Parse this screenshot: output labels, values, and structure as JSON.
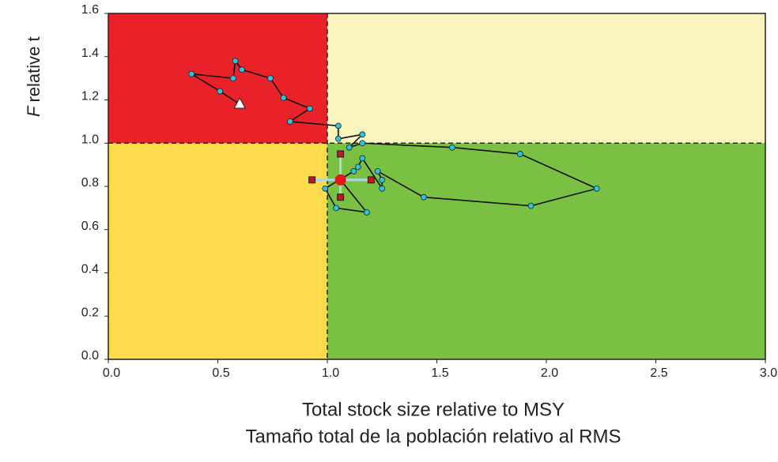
{
  "chart_data": {
    "type": "kobe",
    "ylabel_var": "F",
    "ylabel": "relative t",
    "xlabel": [
      "Total stock size relative to MSY",
      "Tamaño total de la población relativo al RMS"
    ],
    "xlim": [
      0,
      3
    ],
    "ylim": [
      0,
      1.6
    ],
    "xticks": [
      {
        "value": 0,
        "label": "0.0"
      },
      {
        "value": 0.5,
        "label": "0.5"
      },
      {
        "value": 1,
        "label": "1.0"
      },
      {
        "value": 1.5,
        "label": "1.5"
      },
      {
        "value": 2,
        "label": "2.0"
      },
      {
        "value": 2.5,
        "label": "2.5"
      },
      {
        "value": 3,
        "label": "3.0"
      }
    ],
    "yticks": [
      {
        "value": 0,
        "label": "0.0"
      },
      {
        "value": 0.2,
        "label": "0.2"
      },
      {
        "value": 0.4,
        "label": "0.4"
      },
      {
        "value": 0.6,
        "label": "0.6"
      },
      {
        "value": 0.8,
        "label": "0.8"
      },
      {
        "value": 1,
        "label": "1.0"
      },
      {
        "value": 1.2,
        "label": "1.2"
      },
      {
        "value": 1.4,
        "label": "1.4"
      },
      {
        "value": 1.6,
        "label": "1.6"
      }
    ],
    "reference": {
      "x": 1,
      "y": 1
    },
    "quadrant_colors": {
      "top_left": "#e92229",
      "top_right": "#fcf4bf",
      "bottom_left": "#fcdc4c",
      "bottom_right": "#7ac143"
    },
    "series": [
      {
        "color": "#29c4e0",
        "x": [
          0.6,
          0.51,
          0.38,
          0.57,
          0.58,
          0.61,
          0.74,
          0.8,
          0.92,
          0.83,
          1.05,
          1.05,
          1.16,
          1.1,
          1.16,
          1.57,
          1.88,
          2.23,
          1.93,
          1.44,
          1.23,
          1.25,
          1.25,
          1.16,
          1.14,
          1.12,
          0.99,
          1.04,
          1.18,
          1.06
        ],
        "values": [
          1.18,
          1.24,
          1.32,
          1.3,
          1.38,
          1.34,
          1.3,
          1.21,
          1.16,
          1.1,
          1.08,
          1.02,
          1.04,
          0.98,
          1.0,
          0.98,
          0.95,
          0.79,
          0.71,
          0.75,
          0.87,
          0.83,
          0.79,
          0.93,
          0.89,
          0.87,
          0.79,
          0.7,
          0.68,
          0.83
        ]
      }
    ],
    "final": {
      "color": "#e8141b",
      "x_ci": [
        0.93,
        1.2
      ],
      "y_ci": [
        0.75,
        0.95
      ]
    }
  }
}
